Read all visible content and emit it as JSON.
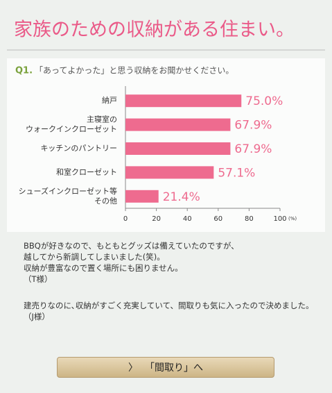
{
  "header": {
    "title": "家族のための収納がある住まい。"
  },
  "chart_data": {
    "type": "hbar",
    "question_number": "Q1.",
    "subtitle": "「あってよかった」と思う収納をお聞かせください。",
    "categories": [
      "納戸",
      "主寝室の\nウォークインクローゼット",
      "キッチンのパントリー",
      "和室クローゼット",
      "シューズインクローゼット等\nその他"
    ],
    "values": [
      75.0,
      67.9,
      67.9,
      57.1,
      21.4
    ],
    "value_labels": [
      "75.0%",
      "67.9%",
      "67.9%",
      "57.1%",
      "21.4%"
    ],
    "color": "#ee6b8f",
    "xlim": [
      0,
      100
    ],
    "xticks": [
      0,
      20,
      40,
      60,
      80,
      100
    ],
    "xlabel": "(%)"
  },
  "comments": [
    {
      "lines": [
        "BBQが好きなので、もともとグッズは備えていたのですが、",
        "越してから新調してしまいました(笑)。",
        "収納が豊富なので置く場所にも困りません。"
      ],
      "author": "（T様）"
    },
    {
      "lines": [
        "建売りなのに､収納がすごく充実していて、間取りも気に入ったので決めました。"
      ],
      "author": "（J様）"
    }
  ],
  "button": {
    "label": "「間取り」へ"
  }
}
